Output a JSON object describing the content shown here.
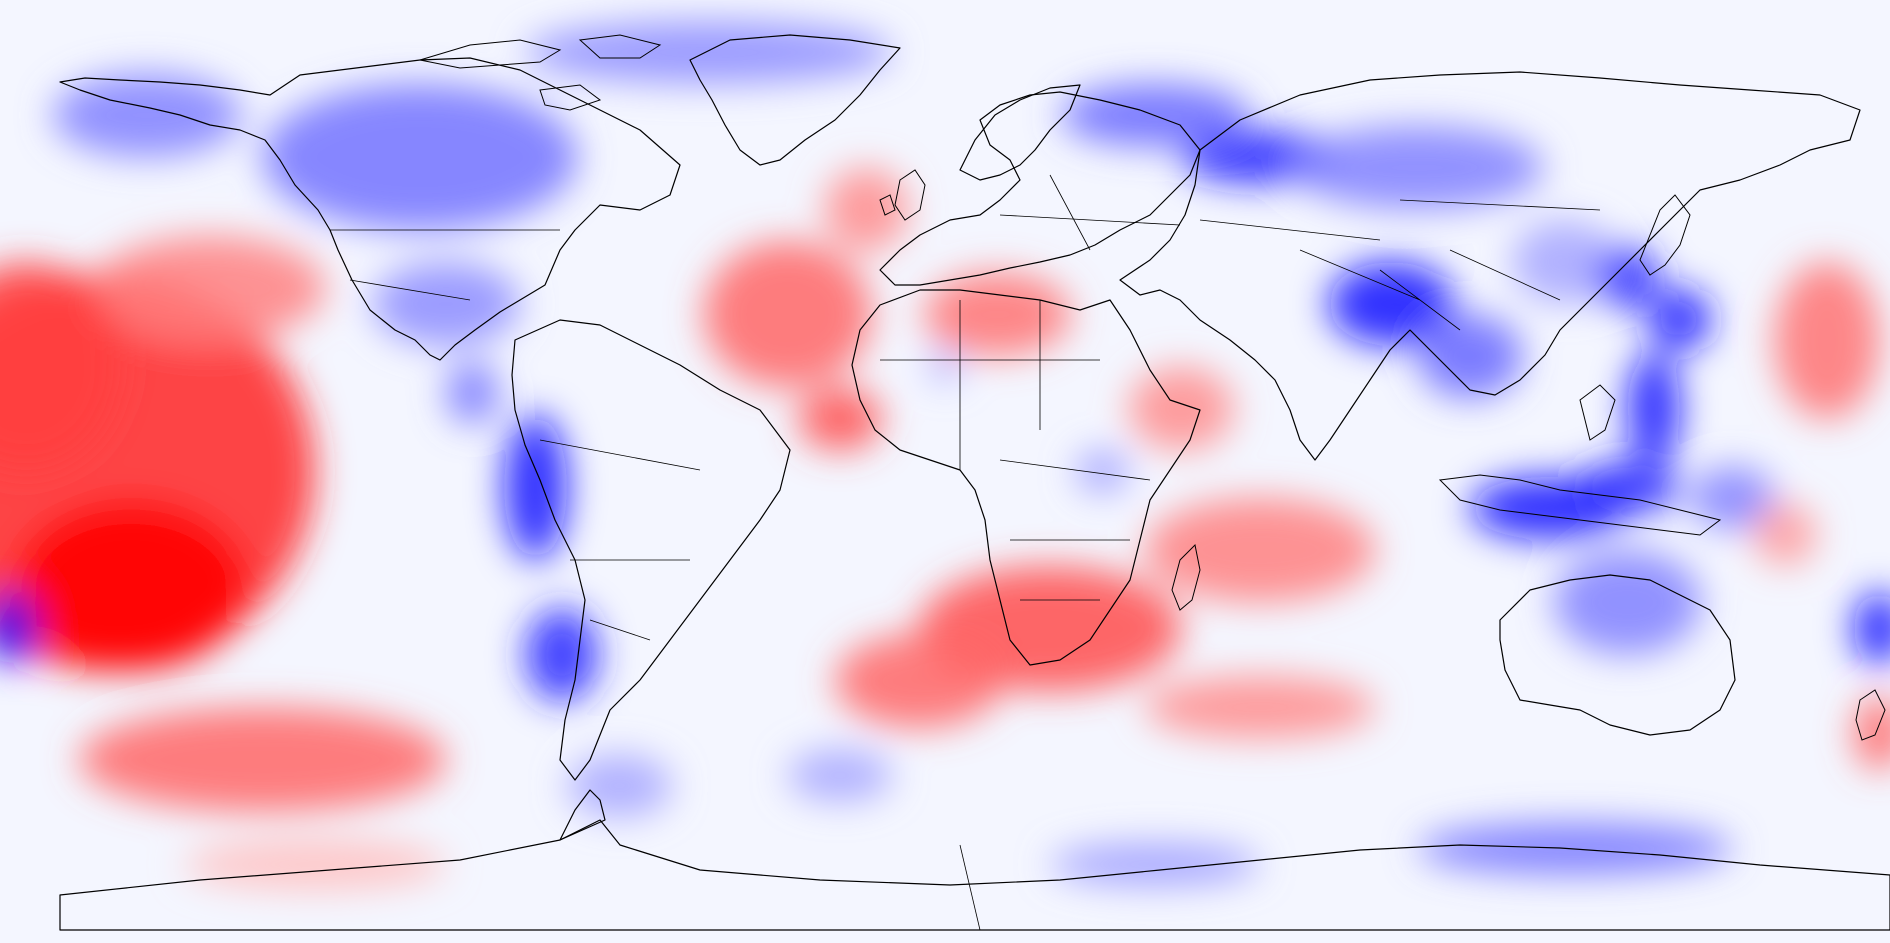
{
  "map": {
    "projection": "equirectangular",
    "extent": {
      "lon": [
        -180,
        180
      ],
      "lat": [
        -90,
        90
      ]
    },
    "colormap": {
      "positive": "#ff0000",
      "neutral": "#ffffff",
      "negative": "#0000ff"
    },
    "value_range": [
      -1,
      1
    ],
    "background": "#f4f6ff",
    "anomalies": [
      {
        "lon": -160,
        "lat": 0,
        "value": 0.85,
        "rlon": 40,
        "rlat": 38
      },
      {
        "lon": -155,
        "lat": -22,
        "value": 1.0,
        "rlon": 22,
        "rlat": 16
      },
      {
        "lon": -175,
        "lat": 20,
        "value": 0.75,
        "rlon": 18,
        "rlat": 20
      },
      {
        "lon": -130,
        "lat": -55,
        "value": 0.6,
        "rlon": 35,
        "rlat": 10
      },
      {
        "lon": -140,
        "lat": 35,
        "value": 0.5,
        "rlon": 22,
        "rlat": 10
      },
      {
        "lon": -100,
        "lat": 60,
        "value": -0.55,
        "rlon": 30,
        "rlat": 14
      },
      {
        "lon": -95,
        "lat": 32,
        "value": -0.45,
        "rlon": 14,
        "rlat": 8
      },
      {
        "lon": -152,
        "lat": 68,
        "value": -0.5,
        "rlon": 18,
        "rlat": 8
      },
      {
        "lon": -45,
        "lat": 80,
        "value": -0.45,
        "rlon": 35,
        "rlat": 6
      },
      {
        "lon": -78,
        "lat": -3,
        "value": -0.95,
        "rlon": 6,
        "rlat": 14
      },
      {
        "lon": -73,
        "lat": -35,
        "value": -0.85,
        "rlon": 7,
        "rlat": 9
      },
      {
        "lon": -90,
        "lat": 15,
        "value": -0.55,
        "rlon": 5,
        "rlat": 6
      },
      {
        "lon": -62,
        "lat": -60,
        "value": -0.35,
        "rlon": 10,
        "rlat": 6
      },
      {
        "lon": -30,
        "lat": 30,
        "value": 0.6,
        "rlon": 16,
        "rlat": 14
      },
      {
        "lon": -20,
        "lat": 10,
        "value": 0.7,
        "rlon": 8,
        "rlat": 6
      },
      {
        "lon": -15,
        "lat": 50,
        "value": 0.45,
        "rlon": 8,
        "rlat": 8
      },
      {
        "lon": 10,
        "lat": 30,
        "value": 0.55,
        "rlon": 14,
        "rlat": 8
      },
      {
        "lon": 0,
        "lat": 20,
        "value": -0.35,
        "rlon": 3,
        "rlat": 3
      },
      {
        "lon": 20,
        "lat": -30,
        "value": 0.7,
        "rlon": 25,
        "rlat": 12
      },
      {
        "lon": -5,
        "lat": -40,
        "value": 0.6,
        "rlon": 16,
        "rlat": 9
      },
      {
        "lon": 60,
        "lat": -15,
        "value": 0.5,
        "rlon": 22,
        "rlat": 10
      },
      {
        "lon": 45,
        "lat": 12,
        "value": 0.45,
        "rlon": 10,
        "rlat": 8
      },
      {
        "lon": 60,
        "lat": -45,
        "value": 0.45,
        "rlon": 22,
        "rlat": 6
      },
      {
        "lon": 30,
        "lat": 0,
        "value": -0.4,
        "rlon": 5,
        "rlat": 4
      },
      {
        "lon": 60,
        "lat": 60,
        "value": -0.9,
        "rlon": 15,
        "rlat": 5
      },
      {
        "lon": 40,
        "lat": 68,
        "value": -0.6,
        "rlon": 18,
        "rlat": 6
      },
      {
        "lon": 90,
        "lat": 58,
        "value": -0.5,
        "rlon": 24,
        "rlat": 8
      },
      {
        "lon": 85,
        "lat": 32,
        "value": -0.95,
        "rlon": 12,
        "rlat": 8
      },
      {
        "lon": 100,
        "lat": 22,
        "value": -0.6,
        "rlon": 10,
        "rlat": 8
      },
      {
        "lon": 118,
        "lat": 40,
        "value": -0.35,
        "rlon": 10,
        "rlat": 8
      },
      {
        "lon": 130,
        "lat": 37,
        "value": -0.85,
        "rlon": 6,
        "rlat": 6
      },
      {
        "lon": 140,
        "lat": 29,
        "value": -0.9,
        "rlon": 6,
        "rlat": 6
      },
      {
        "lon": 135,
        "lat": 12,
        "value": -0.95,
        "rlon": 5,
        "rlat": 11
      },
      {
        "lon": 115,
        "lat": -7,
        "value": -0.95,
        "rlon": 15,
        "rlat": 6
      },
      {
        "lon": 130,
        "lat": -3,
        "value": -0.85,
        "rlon": 10,
        "rlat": 5
      },
      {
        "lon": 130,
        "lat": -25,
        "value": -0.5,
        "rlon": 14,
        "rlat": 10
      },
      {
        "lon": 150,
        "lat": -5,
        "value": -0.5,
        "rlon": 8,
        "rlat": 6
      },
      {
        "lon": 168,
        "lat": 25,
        "value": 0.55,
        "rlon": 10,
        "rlat": 15
      },
      {
        "lon": 160,
        "lat": -12,
        "value": 0.4,
        "rlon": 6,
        "rlat": 6
      },
      {
        "lon": 178,
        "lat": -30,
        "value": -0.95,
        "rlon": 5,
        "rlat": 7
      },
      {
        "lon": -178,
        "lat": -30,
        "value": -0.95,
        "rlon": 5,
        "rlat": 7
      },
      {
        "lon": 178,
        "lat": -50,
        "value": 0.6,
        "rlon": 5,
        "rlat": 7
      },
      {
        "lon": 120,
        "lat": -72,
        "value": -0.55,
        "rlon": 30,
        "rlat": 5
      },
      {
        "lon": 40,
        "lat": -75,
        "value": -0.4,
        "rlon": 20,
        "rlat": 4
      },
      {
        "lon": -20,
        "lat": -58,
        "value": -0.35,
        "rlon": 10,
        "rlat": 5
      },
      {
        "lon": -120,
        "lat": -75,
        "value": 0.25,
        "rlon": 25,
        "rlat": 5
      }
    ]
  }
}
